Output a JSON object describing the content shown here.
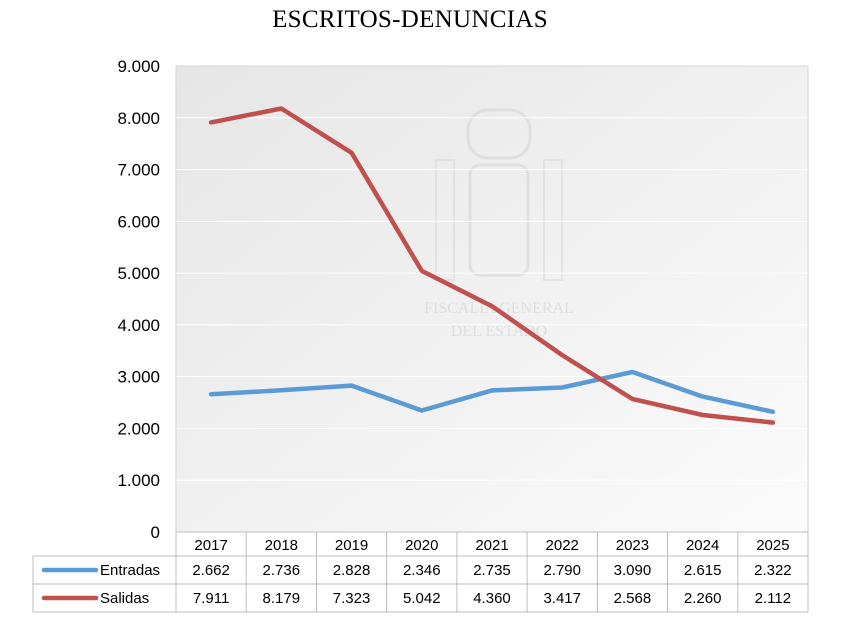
{
  "chart_data": {
    "type": "line",
    "title": "ESCRITOS-DENUNCIAS",
    "categories": [
      "2017",
      "2018",
      "2019",
      "2020",
      "2021",
      "2022",
      "2023",
      "2024",
      "2025"
    ],
    "series": [
      {
        "name": "Entradas",
        "values": [
          2662,
          2736,
          2828,
          2346,
          2735,
          2790,
          3090,
          2615,
          2322
        ],
        "labels": [
          "2.662",
          "2.736",
          "2.828",
          "2.346",
          "2.735",
          "2.790",
          "3.090",
          "2.615",
          "2.322"
        ],
        "color": "#5b9bd5"
      },
      {
        "name": "Salidas",
        "values": [
          7911,
          8179,
          7323,
          5042,
          4360,
          3417,
          2568,
          2260,
          2112
        ],
        "labels": [
          "7.911",
          "8.179",
          "7.323",
          "5.042",
          "4.360",
          "3.417",
          "2.568",
          "2.260",
          "2.112"
        ],
        "color": "#c0504d"
      }
    ],
    "yticks": [
      "0",
      "1.000",
      "2.000",
      "3.000",
      "4.000",
      "5.000",
      "6.000",
      "7.000",
      "8.000",
      "9.000"
    ],
    "ylim": [
      0,
      9000
    ],
    "grid": true,
    "legend": "data-table"
  },
  "watermark": {
    "line1": "FISCALÍA GENERAL",
    "line2": "DEL ESTADO"
  }
}
